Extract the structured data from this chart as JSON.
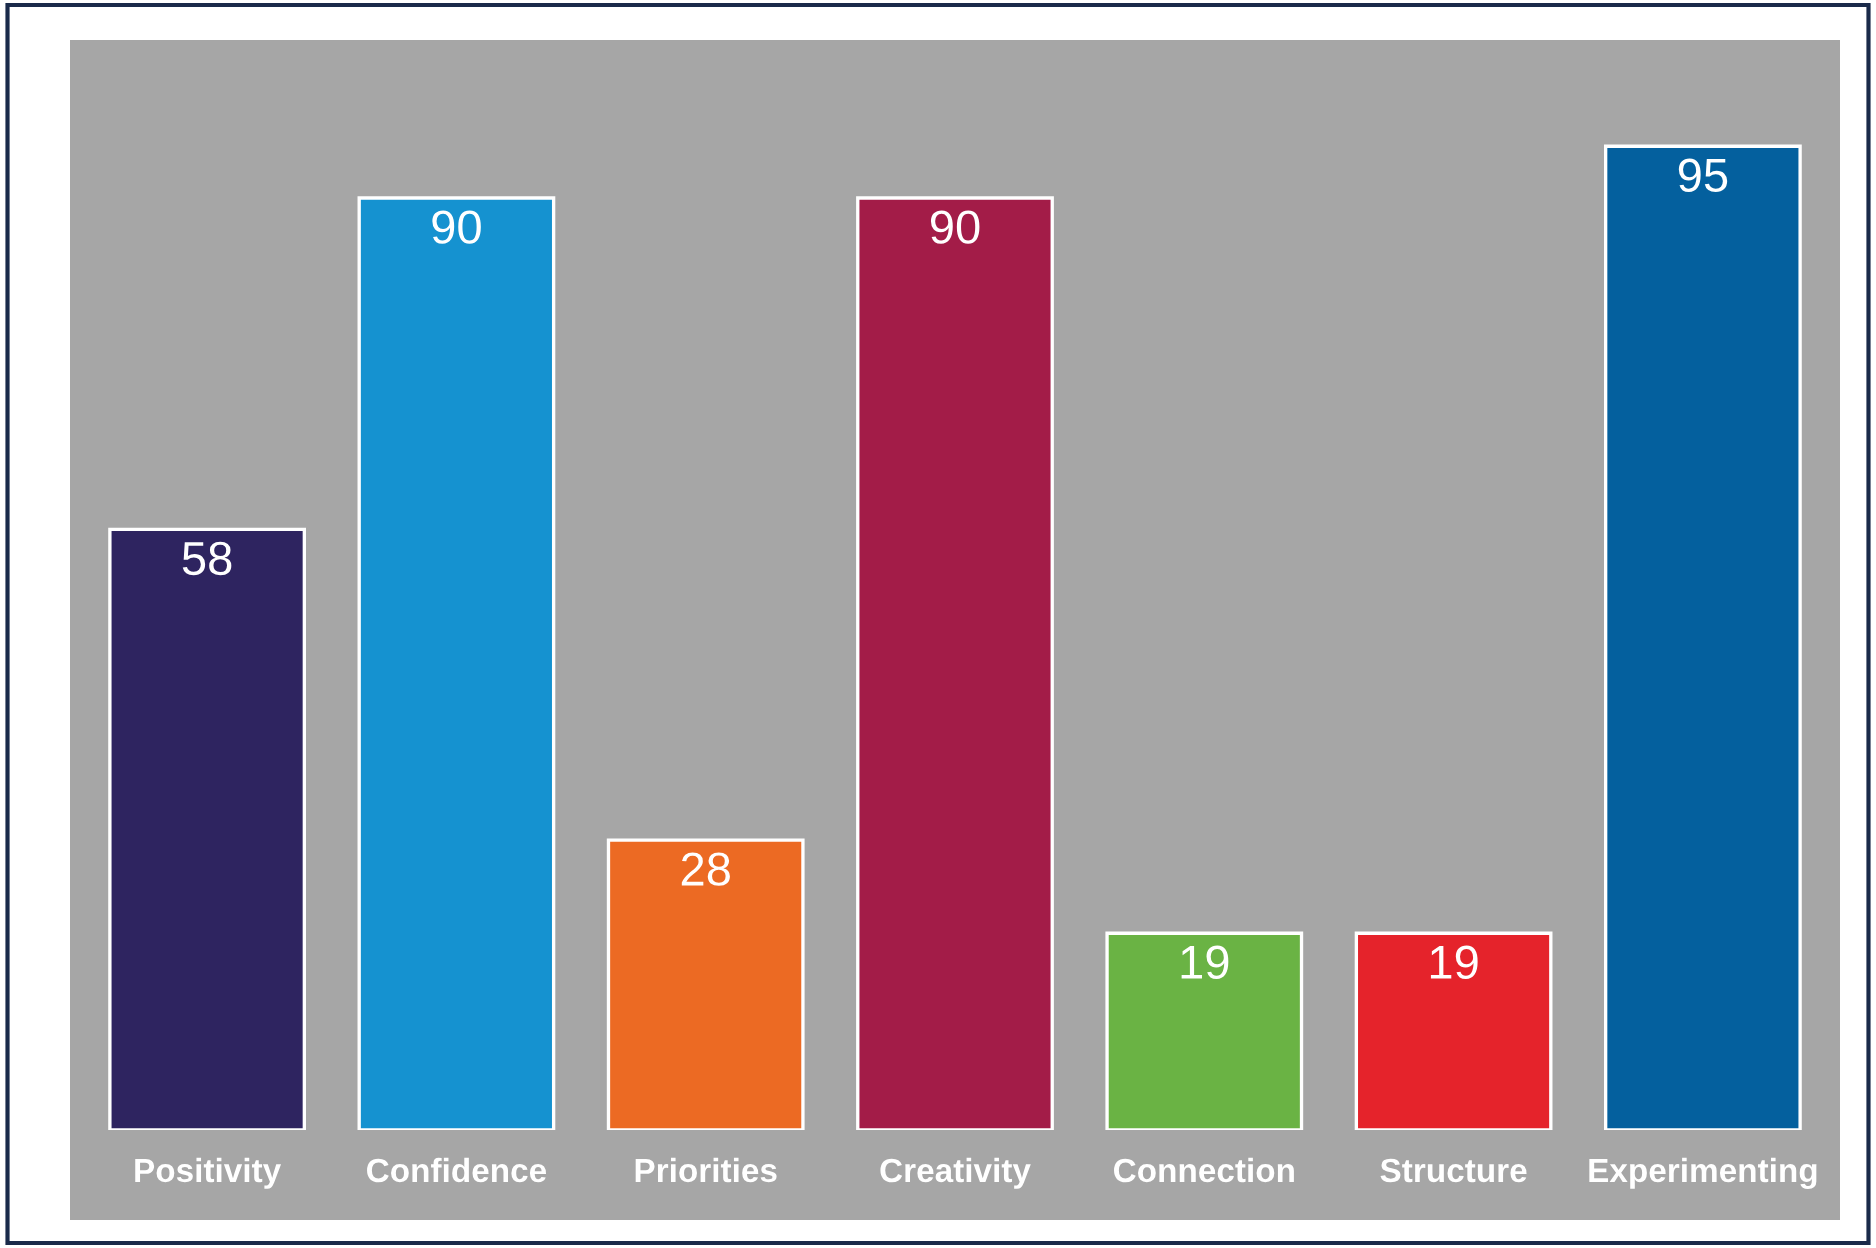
{
  "chart_data": {
    "type": "bar",
    "categories": [
      "Positivity",
      "Confidence",
      "Priorities",
      "Creativity",
      "Connection",
      "Structure",
      "Experimenting"
    ],
    "values": [
      58,
      90,
      28,
      90,
      19,
      19,
      95
    ],
    "colors": [
      "#2e2460",
      "#1592d0",
      "#ec6a23",
      "#a31c48",
      "#6ab344",
      "#e5232b",
      "#04609e"
    ],
    "data_labels": true
  }
}
